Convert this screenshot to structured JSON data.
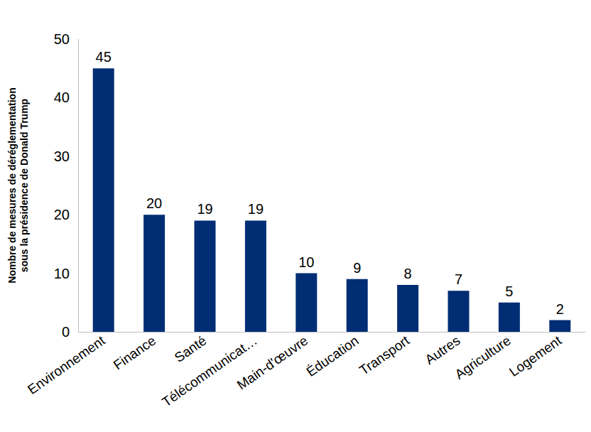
{
  "chart_data": {
    "type": "bar",
    "y_label": "Nombre de mesures de déréglementation\nsous la présidence de Donald Trump",
    "categories": [
      "Environnement",
      "Finance",
      "Santé",
      "Télécommunicat…",
      "Main-d'œuvre",
      "Éducation",
      "Transport",
      "Autres",
      "Agriculture",
      "Logement"
    ],
    "values": [
      45,
      20,
      19,
      19,
      10,
      9,
      8,
      7,
      5,
      2
    ],
    "color": "#002d74",
    "ylim": [
      0,
      50
    ],
    "yticks": [
      0,
      10,
      20,
      30,
      40,
      50
    ],
    "grid": false,
    "data_labels": true
  }
}
